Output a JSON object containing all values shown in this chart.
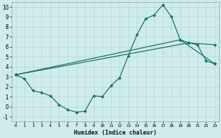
{
  "xlabel": "Humidex (Indice chaleur)",
  "xlim": [
    -0.5,
    23.5
  ],
  "ylim": [
    -1.5,
    10.5
  ],
  "xticks": [
    0,
    1,
    2,
    3,
    4,
    5,
    6,
    7,
    8,
    9,
    10,
    11,
    12,
    13,
    14,
    15,
    16,
    17,
    18,
    19,
    20,
    21,
    22,
    23
  ],
  "yticks": [
    -1,
    0,
    1,
    2,
    3,
    4,
    5,
    6,
    7,
    8,
    9,
    10
  ],
  "bg_color": "#ceecea",
  "grid_color": "#b8d8d5",
  "line_color": "#1a6e65",
  "line1_x": [
    0,
    1,
    2,
    3,
    4,
    5,
    6,
    7,
    8,
    9,
    10,
    11,
    12,
    13,
    14,
    15,
    16,
    17,
    18,
    19,
    20,
    21,
    22,
    23
  ],
  "line1_y": [
    3.2,
    2.8,
    1.6,
    1.4,
    1.1,
    0.2,
    -0.3,
    -0.55,
    -0.45,
    1.1,
    1.0,
    2.1,
    2.9,
    5.1,
    7.2,
    8.8,
    9.2,
    10.2,
    9.0,
    6.7,
    6.4,
    6.2,
    4.6,
    4.3
  ],
  "line2_x": [
    0,
    19,
    23
  ],
  "line2_y": [
    3.2,
    6.7,
    4.3
  ],
  "line3_x": [
    0,
    20,
    23
  ],
  "line3_y": [
    3.2,
    6.4,
    6.2
  ]
}
